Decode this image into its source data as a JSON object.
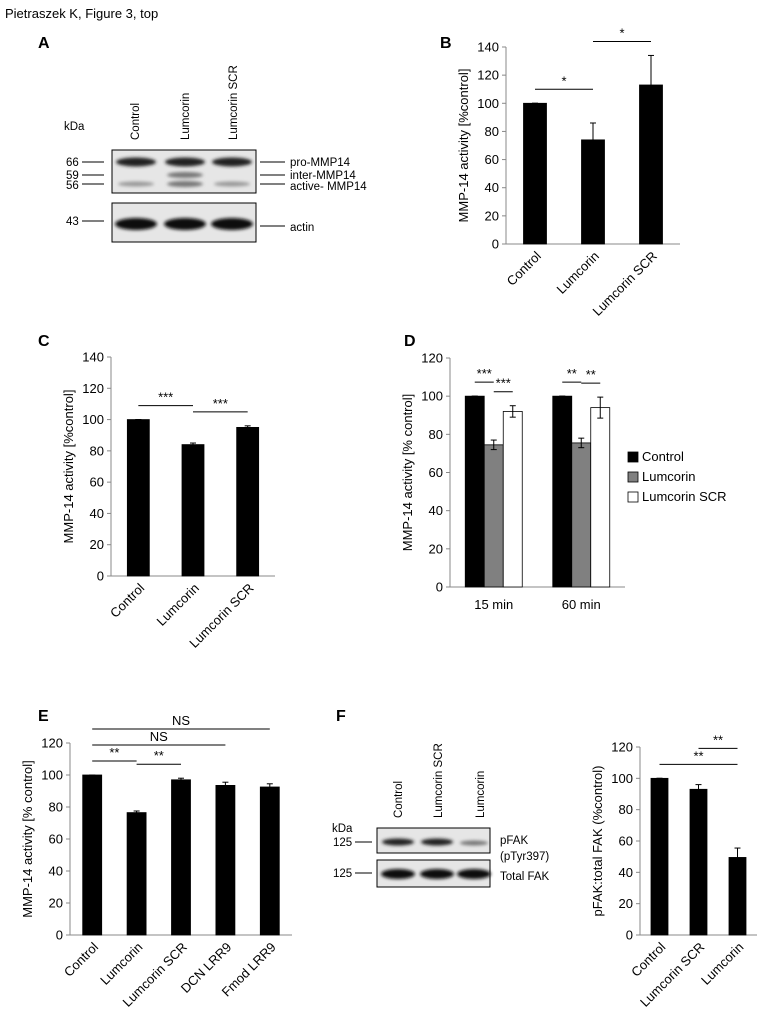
{
  "header": "Pietraszek K, Figure 3, top",
  "panel_labels": [
    "A",
    "B",
    "C",
    "D",
    "E",
    "F"
  ],
  "blot_a": {
    "lanes": [
      "Control",
      "Lumcorin",
      "Lumcorin SCR"
    ],
    "unit": "kDa",
    "markers": [
      "66",
      "59",
      "56",
      "43"
    ],
    "bands": [
      "pro-MMP14",
      "inter-MMP14",
      "active- MMP14",
      "actin"
    ]
  },
  "blot_f": {
    "lanes": [
      "Control",
      "Lumcorin  SCR",
      "Lumcorin"
    ],
    "unit": "kDa",
    "markers": [
      "125",
      "125"
    ],
    "bands": [
      "pFAK",
      "(pTyr397)",
      "Total FAK"
    ]
  },
  "chart_data": [
    {
      "type": "bar",
      "y_label": "MMP-14 activity [%control]",
      "categories": [
        "Control",
        "Lumcorin",
        "Lumcorin SCR"
      ],
      "values": [
        100,
        74,
        113
      ],
      "errors": [
        0,
        12,
        21
      ],
      "color": "#000000",
      "ylim": [
        0,
        140
      ],
      "yticks": [
        0,
        20,
        40,
        60,
        80,
        100,
        120,
        140
      ],
      "grid": false,
      "significance": [
        {
          "label": "*",
          "between": [
            "Control",
            "Lumcorin"
          ]
        },
        {
          "label": "*",
          "between": [
            "Lumcorin",
            "Lumcorin SCR"
          ]
        }
      ]
    },
    {
      "type": "bar",
      "y_label": "MMP-14 activity [%control]",
      "categories": [
        "Control",
        "Lumcorin",
        "Lumcorin SCR"
      ],
      "values": [
        100,
        84,
        95
      ],
      "errors": [
        0,
        1,
        1
      ],
      "color": "#000000",
      "ylim": [
        0,
        140
      ],
      "yticks": [
        0,
        20,
        40,
        60,
        80,
        100,
        120,
        140
      ],
      "grid": false,
      "significance": [
        {
          "label": "***",
          "between": [
            "Control",
            "Lumcorin"
          ]
        },
        {
          "label": "***",
          "between": [
            "Lumcorin",
            "Lumcorin SCR"
          ]
        }
      ]
    },
    {
      "type": "bar",
      "y_label": "MMP-14 activity [% control]",
      "categories": [
        "15 min",
        "60 min"
      ],
      "series": [
        {
          "name": "Control",
          "color": "#000000",
          "values": [
            100,
            100
          ],
          "errors": [
            0,
            0
          ]
        },
        {
          "name": "Lumcorin",
          "color": "#808080",
          "values": [
            74.5,
            75.5
          ],
          "errors": [
            2.5,
            2.5
          ]
        },
        {
          "name": "Lumcorin SCR",
          "color": "#ffffff",
          "values": [
            92,
            94
          ],
          "errors": [
            3,
            5.5
          ]
        }
      ],
      "ylim": [
        0,
        120
      ],
      "yticks": [
        0,
        20,
        40,
        60,
        80,
        100,
        120
      ],
      "grid": false,
      "legend": "right",
      "significance": [
        {
          "label": "***",
          "group": "15 min",
          "between": [
            "Control",
            "Lumcorin"
          ]
        },
        {
          "label": "***",
          "group": "15 min",
          "between": [
            "Lumcorin",
            "Lumcorin SCR"
          ]
        },
        {
          "label": "**",
          "group": "60 min",
          "between": [
            "Control",
            "Lumcorin"
          ]
        },
        {
          "label": "**",
          "group": "60 min",
          "between": [
            "Lumcorin",
            "Lumcorin SCR"
          ]
        }
      ]
    },
    {
      "type": "bar",
      "y_label": "MMP-14 activity [% control]",
      "categories": [
        "Control",
        "Lumcorin",
        "Lumcorin SCR",
        "DCN LRR9",
        "Fmod LRR9"
      ],
      "values": [
        100,
        76.5,
        97,
        93.5,
        92.5
      ],
      "errors": [
        0,
        1,
        1,
        2,
        2
      ],
      "color": "#000000",
      "ylim": [
        0,
        120
      ],
      "yticks": [
        0,
        20,
        40,
        60,
        80,
        100,
        120
      ],
      "grid": false,
      "significance": [
        {
          "label": "**",
          "between": [
            "Control",
            "Lumcorin"
          ]
        },
        {
          "label": "**",
          "between": [
            "Lumcorin",
            "Lumcorin SCR"
          ]
        },
        {
          "label": "NS",
          "between": [
            "Control",
            "DCN LRR9"
          ]
        },
        {
          "label": "NS",
          "between": [
            "Control",
            "Fmod LRR9"
          ]
        }
      ]
    },
    {
      "type": "bar",
      "y_label": "pFAK:total FAK (%control)",
      "categories": [
        "Control",
        "Lumcorin SCR",
        "Lumcorin"
      ],
      "values": [
        100,
        93,
        49.5
      ],
      "errors": [
        0,
        3,
        6
      ],
      "color": "#000000",
      "ylim": [
        0,
        120
      ],
      "yticks": [
        0,
        20,
        40,
        60,
        80,
        100,
        120
      ],
      "grid": false,
      "significance": [
        {
          "label": "**",
          "between": [
            "Control",
            "Lumcorin"
          ]
        },
        {
          "label": "**",
          "between": [
            "Lumcorin SCR",
            "Lumcorin"
          ]
        }
      ]
    }
  ]
}
